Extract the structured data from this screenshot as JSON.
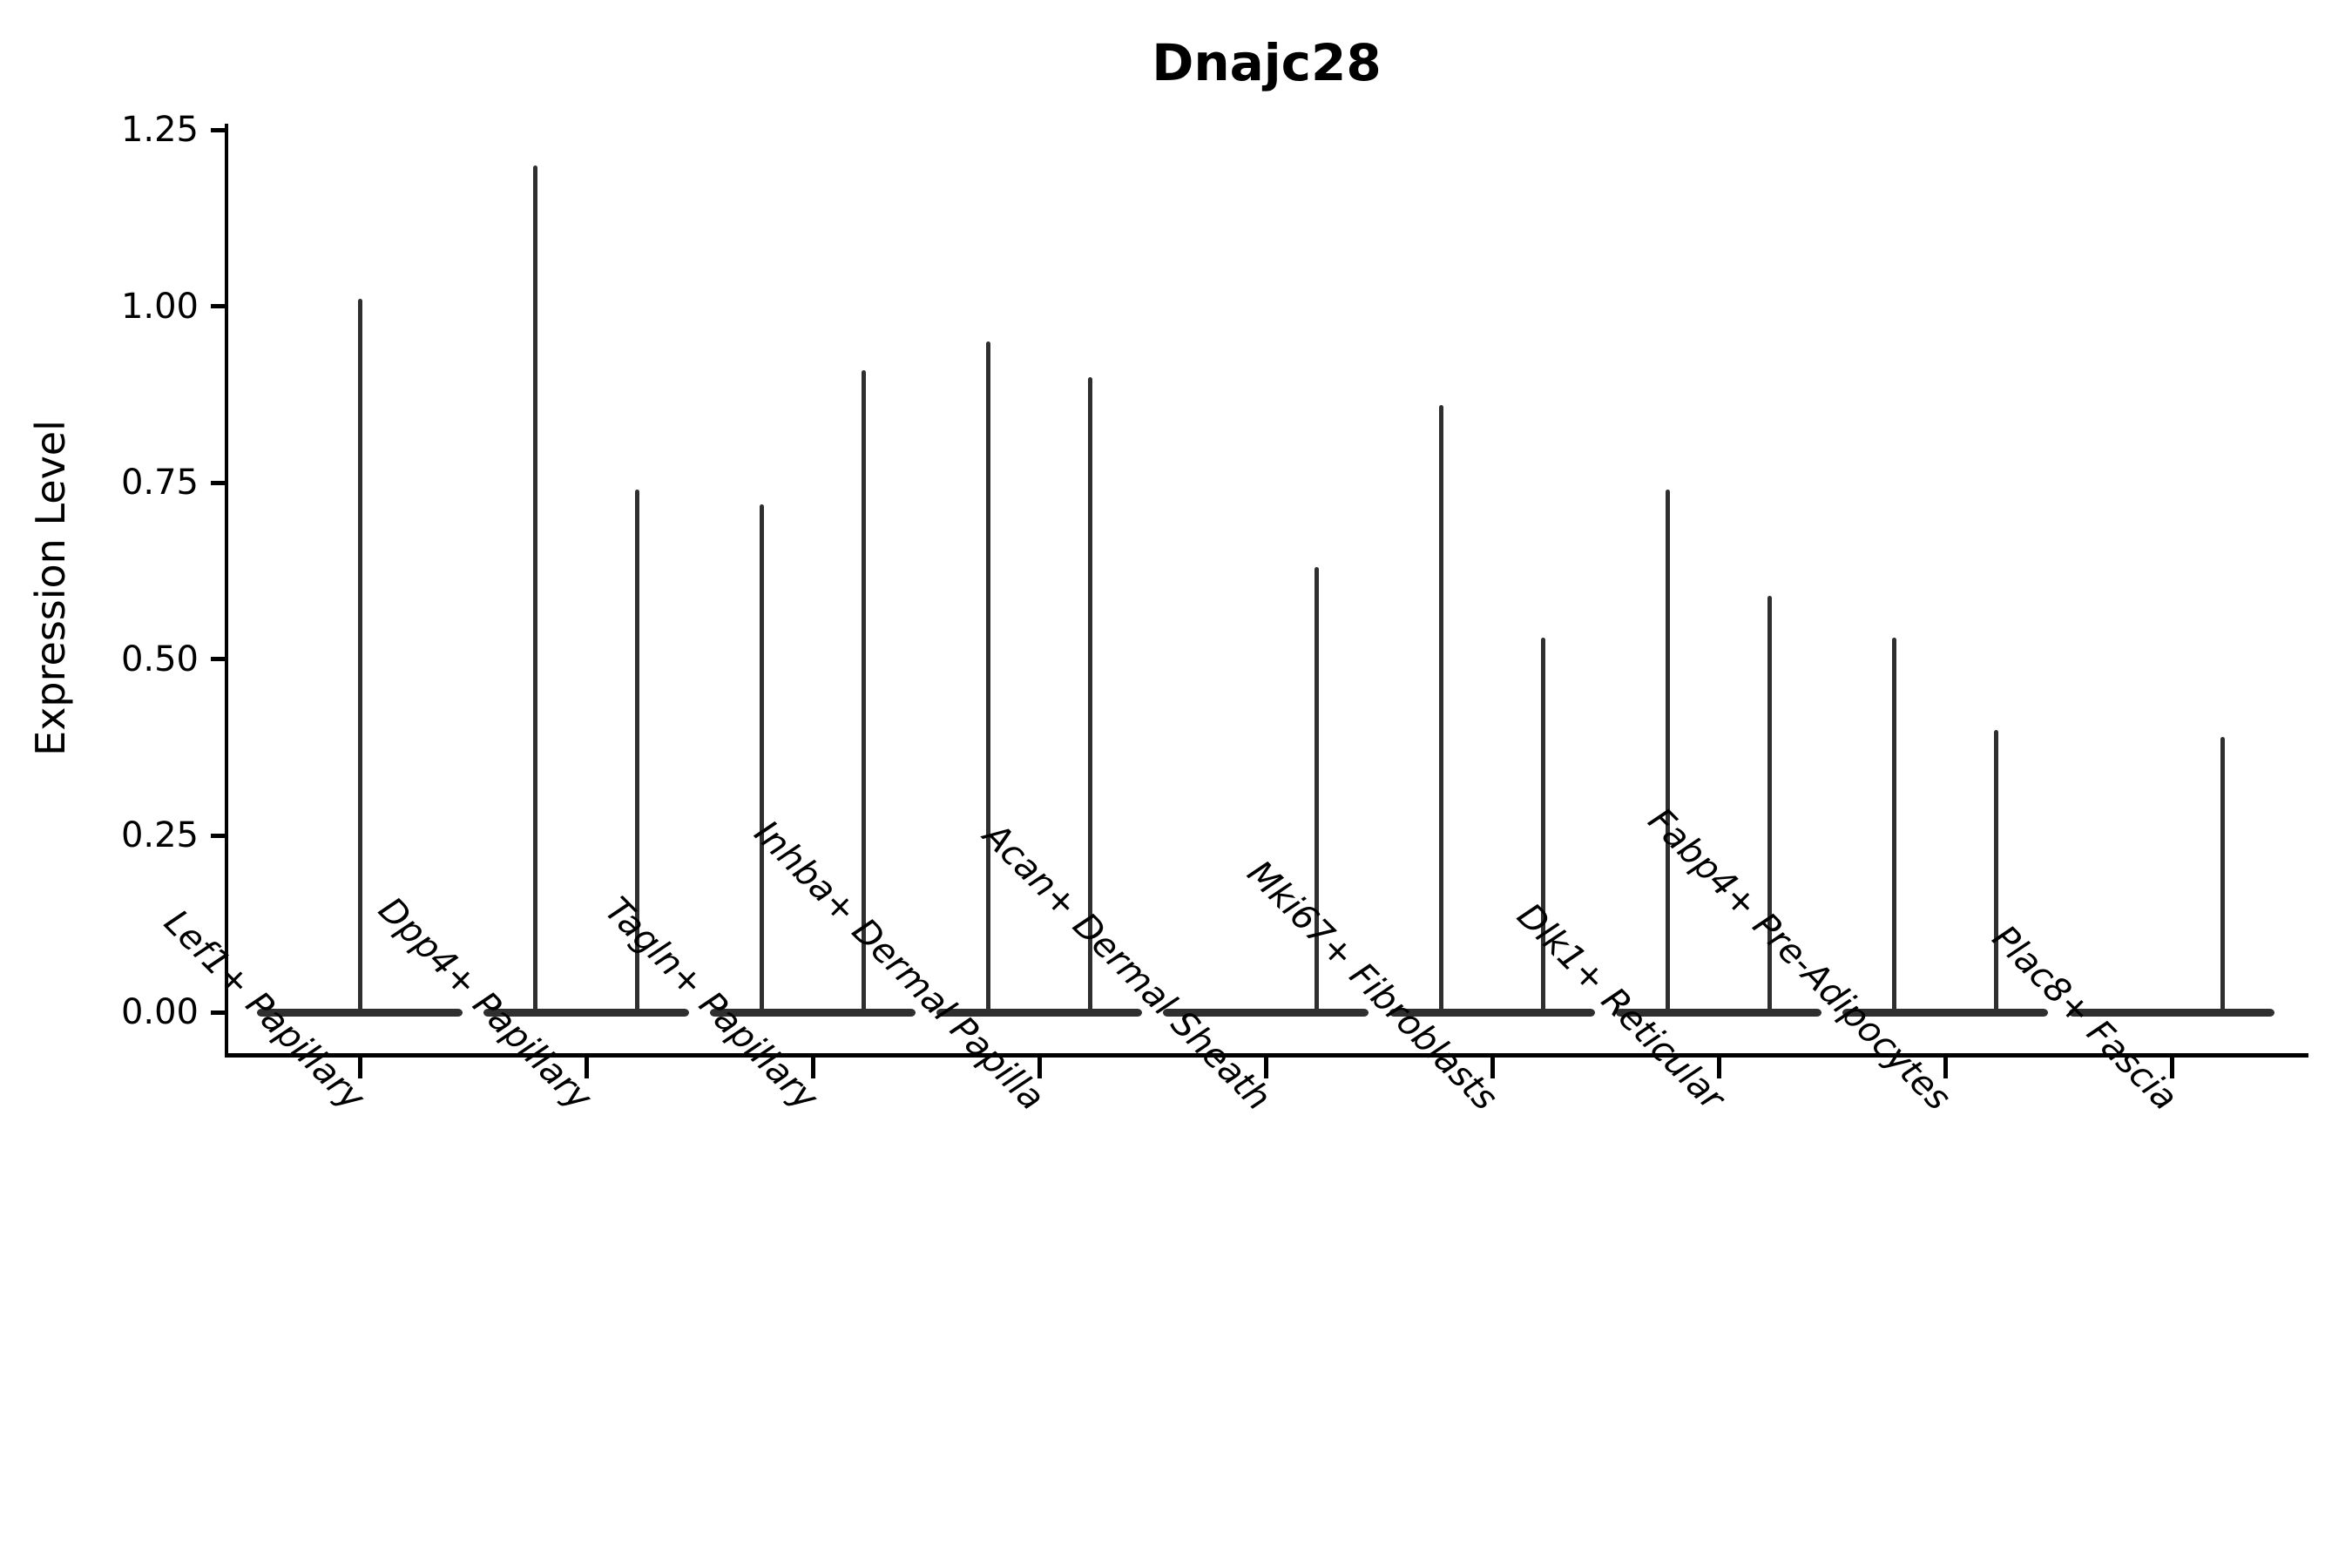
{
  "title": "Dnajc28",
  "axes": {
    "ylabel": "Expression Level",
    "yticks": [
      {
        "label": "0.00",
        "value": 0.0
      },
      {
        "label": "0.25",
        "value": 0.25
      },
      {
        "label": "0.50",
        "value": 0.5
      },
      {
        "label": "0.75",
        "value": 0.75
      },
      {
        "label": "1.00",
        "value": 1.0
      },
      {
        "label": "1.25",
        "value": 1.25
      }
    ]
  },
  "chart_data": {
    "type": "violin",
    "title": "Dnajc28",
    "xlabel": "",
    "ylabel": "Expression Level",
    "ylim": [
      -0.06,
      1.26
    ],
    "yticks": [
      0.0,
      0.25,
      0.5,
      0.75,
      1.0,
      1.25
    ],
    "grid": false,
    "legend": null,
    "style_note": "Thin dark-gray violins: wide flat bulk of density at expression 0 with narrow vertical spike(s) rising to the max expressed value; 1-2 violins per category slot",
    "categories": [
      "Lef1+ Papillary",
      "Dpp4+ Papillary",
      "Tagln+ Papillary",
      "Inhba+ Dermal Papilla",
      "Acan+ Dermal Sheath",
      "Mki67+ Fibroblasts",
      "Dlk1+ Reticular",
      "Fabp4+ Pre-Adipocytes",
      "Plac8+ Fascia"
    ],
    "violins": [
      {
        "category": "Lef1+ Papillary",
        "bulk_value": 0.0,
        "spikes": [
          {
            "slot": "center",
            "max": 1.01
          }
        ]
      },
      {
        "category": "Dpp4+ Papillary",
        "bulk_value": 0.0,
        "spikes": [
          {
            "slot": "left",
            "max": 1.2
          },
          {
            "slot": "right",
            "max": 0.74
          }
        ]
      },
      {
        "category": "Tagln+ Papillary",
        "bulk_value": 0.0,
        "spikes": [
          {
            "slot": "left",
            "max": 0.72
          },
          {
            "slot": "right",
            "max": 0.91
          }
        ]
      },
      {
        "category": "Inhba+ Dermal Papilla",
        "bulk_value": 0.0,
        "spikes": [
          {
            "slot": "left",
            "max": 0.95
          },
          {
            "slot": "right",
            "max": 0.9
          }
        ]
      },
      {
        "category": "Acan+ Dermal Sheath",
        "bulk_value": 0.0,
        "spikes": [
          {
            "slot": "right",
            "max": 0.63
          }
        ]
      },
      {
        "category": "Mki67+ Fibroblasts",
        "bulk_value": 0.0,
        "spikes": [
          {
            "slot": "left",
            "max": 0.86
          },
          {
            "slot": "right",
            "max": 0.53
          }
        ]
      },
      {
        "category": "Dlk1+ Reticular",
        "bulk_value": 0.0,
        "spikes": [
          {
            "slot": "left",
            "max": 0.74
          },
          {
            "slot": "right",
            "max": 0.59
          }
        ]
      },
      {
        "category": "Fabp4+ Pre-Adipocytes",
        "bulk_value": 0.0,
        "spikes": [
          {
            "slot": "left",
            "max": 0.53
          },
          {
            "slot": "right",
            "max": 0.4
          }
        ]
      },
      {
        "category": "Plac8+ Fascia",
        "bulk_value": 0.0,
        "spikes": [
          {
            "slot": "right",
            "max": 0.39
          }
        ]
      }
    ]
  },
  "colors": {
    "violin": "#2f2f2f",
    "axis": "#000000",
    "text": "#000000",
    "background": "#ffffff"
  }
}
